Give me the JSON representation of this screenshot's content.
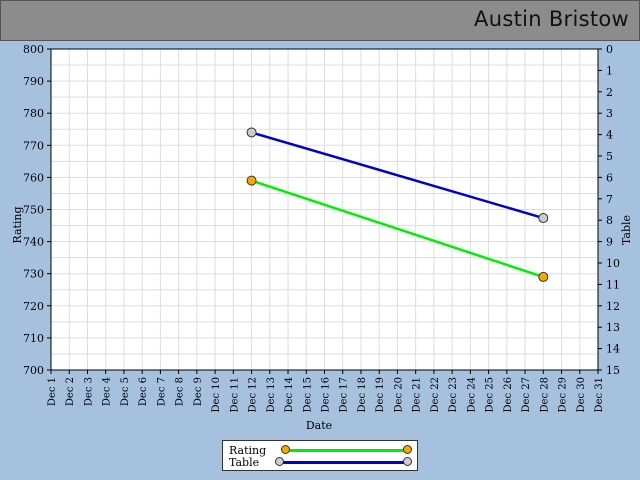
{
  "header": {
    "player_name": "Austin Bristow"
  },
  "chart_data": {
    "type": "line",
    "xlabel": "Date",
    "ylabel": "Rating",
    "y2label": "Table",
    "x": [
      "Dec 1",
      "Dec 2",
      "Dec 3",
      "Dec 4",
      "Dec 5",
      "Dec 6",
      "Dec 7",
      "Dec 8",
      "Dec 9",
      "Dec 10",
      "Dec 11",
      "Dec 12",
      "Dec 13",
      "Dec 14",
      "Dec 15",
      "Dec 16",
      "Dec 17",
      "Dec 18",
      "Dec 19",
      "Dec 20",
      "Dec 21",
      "Dec 22",
      "Dec 23",
      "Dec 24",
      "Dec 25",
      "Dec 26",
      "Dec 27",
      "Dec 28",
      "Dec 29",
      "Dec 30",
      "Dec 31"
    ],
    "ylim": [
      700,
      800
    ],
    "yticks": [
      700,
      710,
      720,
      730,
      740,
      750,
      760,
      770,
      780,
      790,
      800
    ],
    "y2lim": [
      0,
      15
    ],
    "y2ticks": [
      0,
      1,
      2,
      3,
      4,
      5,
      6,
      7,
      8,
      9,
      10,
      11,
      12,
      13,
      14,
      15
    ],
    "y2_inverted": true,
    "grid": true,
    "legend_position": "bottom-center",
    "series": [
      {
        "name": "Rating",
        "axis": "left",
        "color": "#00ee00",
        "marker_color": "#f5a800",
        "points": [
          {
            "x": "Dec 12",
            "y": 759
          },
          {
            "x": "Dec 28",
            "y": 729
          }
        ]
      },
      {
        "name": "Table",
        "axis": "right",
        "color": "#0000cc",
        "marker_color": "#cccccc",
        "points": [
          {
            "x": "Dec 12",
            "y": 3.9
          },
          {
            "x": "Dec 28",
            "y": 7.9
          }
        ]
      }
    ]
  }
}
